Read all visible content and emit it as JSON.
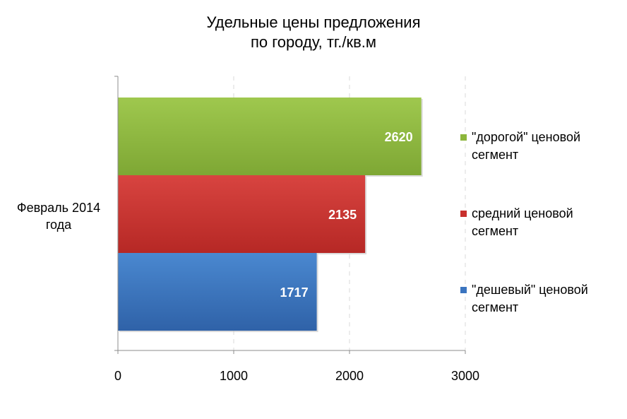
{
  "chart_data": {
    "type": "bar",
    "orientation": "horizontal",
    "title": [
      "Удельные цены предложения",
      "по городу, тг./кв.м"
    ],
    "categories": [
      "Февраль 2014 года"
    ],
    "category_label_lines": [
      "Февраль 2014",
      "года"
    ],
    "series": [
      {
        "name": [
          "\"дорогой\" ценовой",
          "сегмент"
        ],
        "values": [
          2620
        ],
        "color": "#8cb63c"
      },
      {
        "name": [
          "средний ценовой",
          "сегмент"
        ],
        "values": [
          2135
        ],
        "color": "#c8302d"
      },
      {
        "name": [
          "\"дешевый\" ценовой",
          "сегмент"
        ],
        "values": [
          1717
        ],
        "color": "#3a74bf"
      }
    ],
    "xlim": [
      0,
      3000
    ],
    "xticks": [
      "0",
      "1000",
      "2000",
      "3000"
    ],
    "grid": "vertical dashed",
    "legend": "right"
  }
}
